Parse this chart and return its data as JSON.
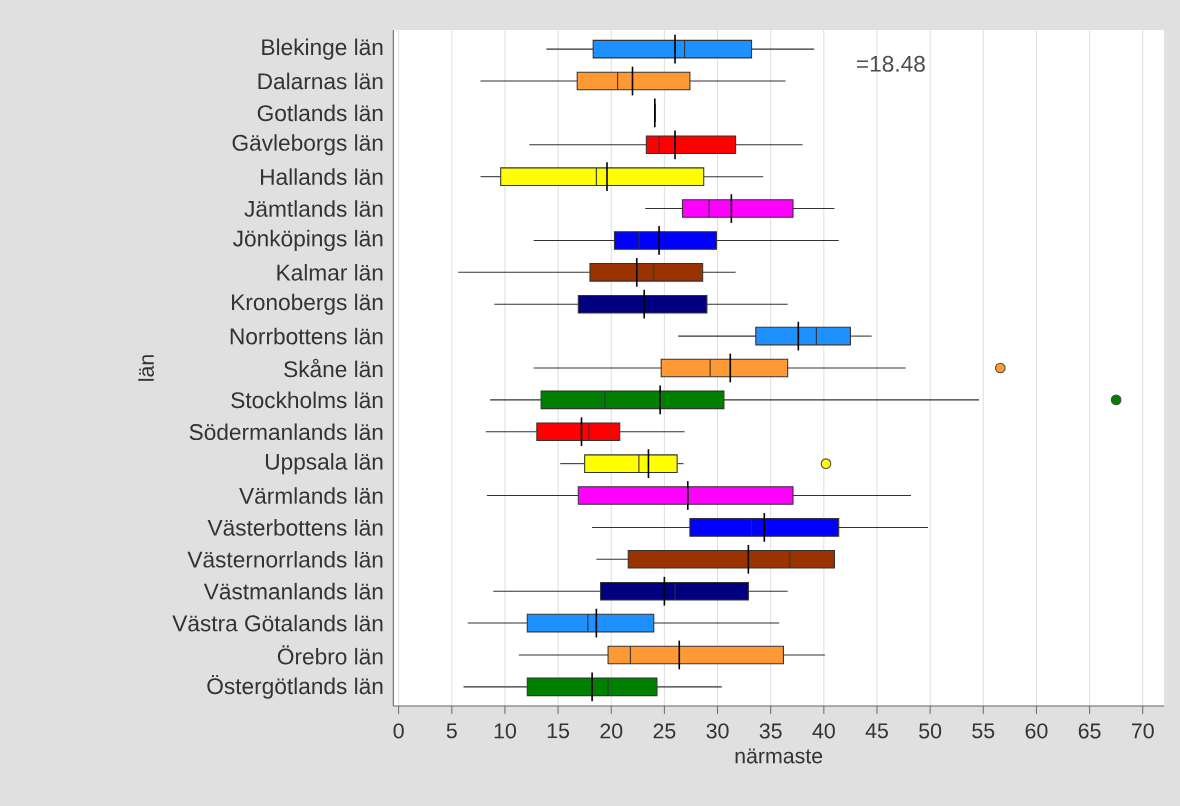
{
  "chart_data": {
    "type": "box",
    "orientation": "horizontal",
    "xlabel": "närmaste",
    "ylabel": "län",
    "annotations": [
      "=18.48"
    ],
    "categories": [
      "Blekinge län",
      "Dalarnas län",
      "Gotlands län",
      "Gävleborgs län",
      "Hallands län",
      "Jämtlands län",
      "Jönköpings län",
      "Kalmar län",
      "Kronobergs län",
      "Norrbottens län",
      "Skåne län",
      "Stockholms län",
      "Södermanlands län",
      "Uppsala län",
      "Värmlands län",
      "Västerbottens län",
      "Västernorrlands län",
      "Västmanlands län",
      "Västra Götalands län",
      "Örebro län",
      "Östergötlands län"
    ],
    "colors": [
      "#1e90ff",
      "#ff9933",
      "#000000",
      "#ff0000",
      "#ffff00",
      "#ff00ff",
      "#0000ff",
      "#993300",
      "#000080",
      "#1e90ff",
      "#ff9933",
      "#008000",
      "#ff0000",
      "#ffff00",
      "#ff00ff",
      "#0000ff",
      "#993300",
      "#000080",
      "#1e90ff",
      "#ff9933",
      "#008000"
    ],
    "boxes": [
      {
        "low": 13.9,
        "q1": 18.3,
        "median": 26.9,
        "q3": 33.2,
        "high": 39.1,
        "mean": 26.0
      },
      {
        "low": 7.7,
        "q1": 16.8,
        "median": 20.6,
        "q3": 27.4,
        "high": 36.4,
        "mean": 22.0
      },
      {
        "low": 24.1,
        "q1": 24.1,
        "median": 24.1,
        "q3": 24.1,
        "high": 24.1,
        "mean": 24.1
      },
      {
        "low": 12.3,
        "q1": 23.3,
        "median": 24.5,
        "q3": 31.7,
        "high": 38.0,
        "mean": 26.0
      },
      {
        "low": 7.7,
        "q1": 9.6,
        "median": 18.6,
        "q3": 28.7,
        "high": 34.3,
        "mean": 19.6
      },
      {
        "low": 23.2,
        "q1": 26.7,
        "median": 29.2,
        "q3": 37.1,
        "high": 41.0,
        "mean": 31.3
      },
      {
        "low": 12.7,
        "q1": 20.3,
        "median": 22.6,
        "q3": 29.9,
        "high": 41.4,
        "mean": 24.5
      },
      {
        "low": 5.6,
        "q1": 18.0,
        "median": 24.0,
        "q3": 28.6,
        "high": 31.7,
        "mean": 22.4
      },
      {
        "low": 9.0,
        "q1": 16.9,
        "median": 23.1,
        "q3": 29.0,
        "high": 36.6,
        "mean": 23.1
      },
      {
        "low": 26.3,
        "q1": 33.6,
        "median": 39.3,
        "q3": 42.5,
        "high": 44.5,
        "mean": 37.6
      },
      {
        "low": 12.7,
        "q1": 24.7,
        "median": 29.3,
        "q3": 36.6,
        "high": 47.7,
        "mean": 31.2,
        "outliers": [
          56.6
        ]
      },
      {
        "low": 8.6,
        "q1": 13.4,
        "median": 19.4,
        "q3": 30.6,
        "high": 54.6,
        "mean": 24.6,
        "outliers": [
          67.5
        ]
      },
      {
        "low": 8.2,
        "q1": 13.0,
        "median": 17.9,
        "q3": 20.8,
        "high": 26.9,
        "mean": 17.2
      },
      {
        "low": 15.2,
        "q1": 17.5,
        "median": 22.6,
        "q3": 26.2,
        "high": 26.8,
        "mean": 23.5,
        "outliers": [
          40.2
        ]
      },
      {
        "low": 8.3,
        "q1": 16.9,
        "median": 27.2,
        "q3": 37.1,
        "high": 48.2,
        "mean": 27.2
      },
      {
        "low": 18.2,
        "q1": 27.4,
        "median": 33.2,
        "q3": 41.4,
        "high": 49.8,
        "mean": 34.4
      },
      {
        "low": 18.6,
        "q1": 21.6,
        "median": 36.8,
        "q3": 41.0,
        "high": 41.0,
        "mean": 32.9
      },
      {
        "low": 8.9,
        "q1": 19.0,
        "median": 26.0,
        "q3": 32.9,
        "high": 36.6,
        "mean": 25.0
      },
      {
        "low": 6.5,
        "q1": 12.1,
        "median": 17.8,
        "q3": 24.0,
        "high": 35.8,
        "mean": 18.6
      },
      {
        "low": 11.3,
        "q1": 19.7,
        "median": 21.8,
        "q3": 36.2,
        "high": 40.1,
        "mean": 26.4
      },
      {
        "low": 6.1,
        "q1": 12.1,
        "median": 19.7,
        "q3": 24.3,
        "high": 30.4,
        "mean": 18.2
      }
    ],
    "xlim": [
      -0.5,
      72
    ],
    "xticks": [
      0,
      5,
      10,
      15,
      20,
      25,
      30,
      35,
      40,
      45,
      50,
      55,
      60,
      65,
      70
    ],
    "grid": "x"
  }
}
